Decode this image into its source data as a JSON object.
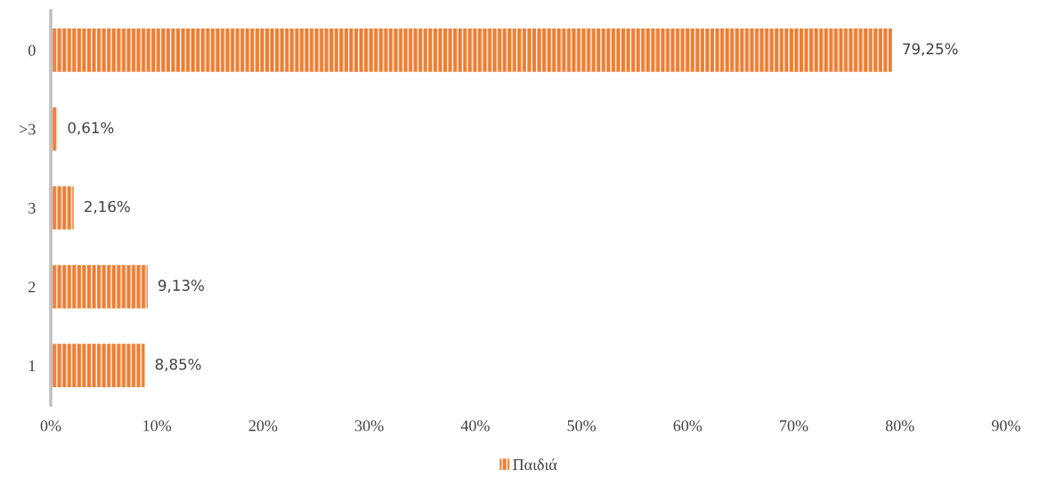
{
  "chart_data": {
    "type": "bar",
    "orientation": "horizontal",
    "categories": [
      "0",
      ">3",
      "3",
      "2",
      "1"
    ],
    "series": [
      {
        "name": "Παιδιά",
        "color": "#ed7d31",
        "values": [
          79.25,
          0.61,
          2.16,
          9.13,
          8.85
        ],
        "value_labels": [
          "79,25%",
          "0,61%",
          "2,16%",
          "9,13%",
          "8,85%"
        ]
      }
    ],
    "xlim": [
      0,
      90
    ],
    "xticks": [
      {
        "value": 0,
        "label": "0%"
      },
      {
        "value": 10,
        "label": "10%"
      },
      {
        "value": 20,
        "label": "20%"
      },
      {
        "value": 30,
        "label": "30%"
      },
      {
        "value": 40,
        "label": "40%"
      },
      {
        "value": 50,
        "label": "50%"
      },
      {
        "value": 60,
        "label": "60%"
      },
      {
        "value": 70,
        "label": "70%"
      },
      {
        "value": 80,
        "label": "80%"
      },
      {
        "value": 90,
        "label": "90%"
      }
    ],
    "grid": false,
    "legend": "bottom"
  }
}
